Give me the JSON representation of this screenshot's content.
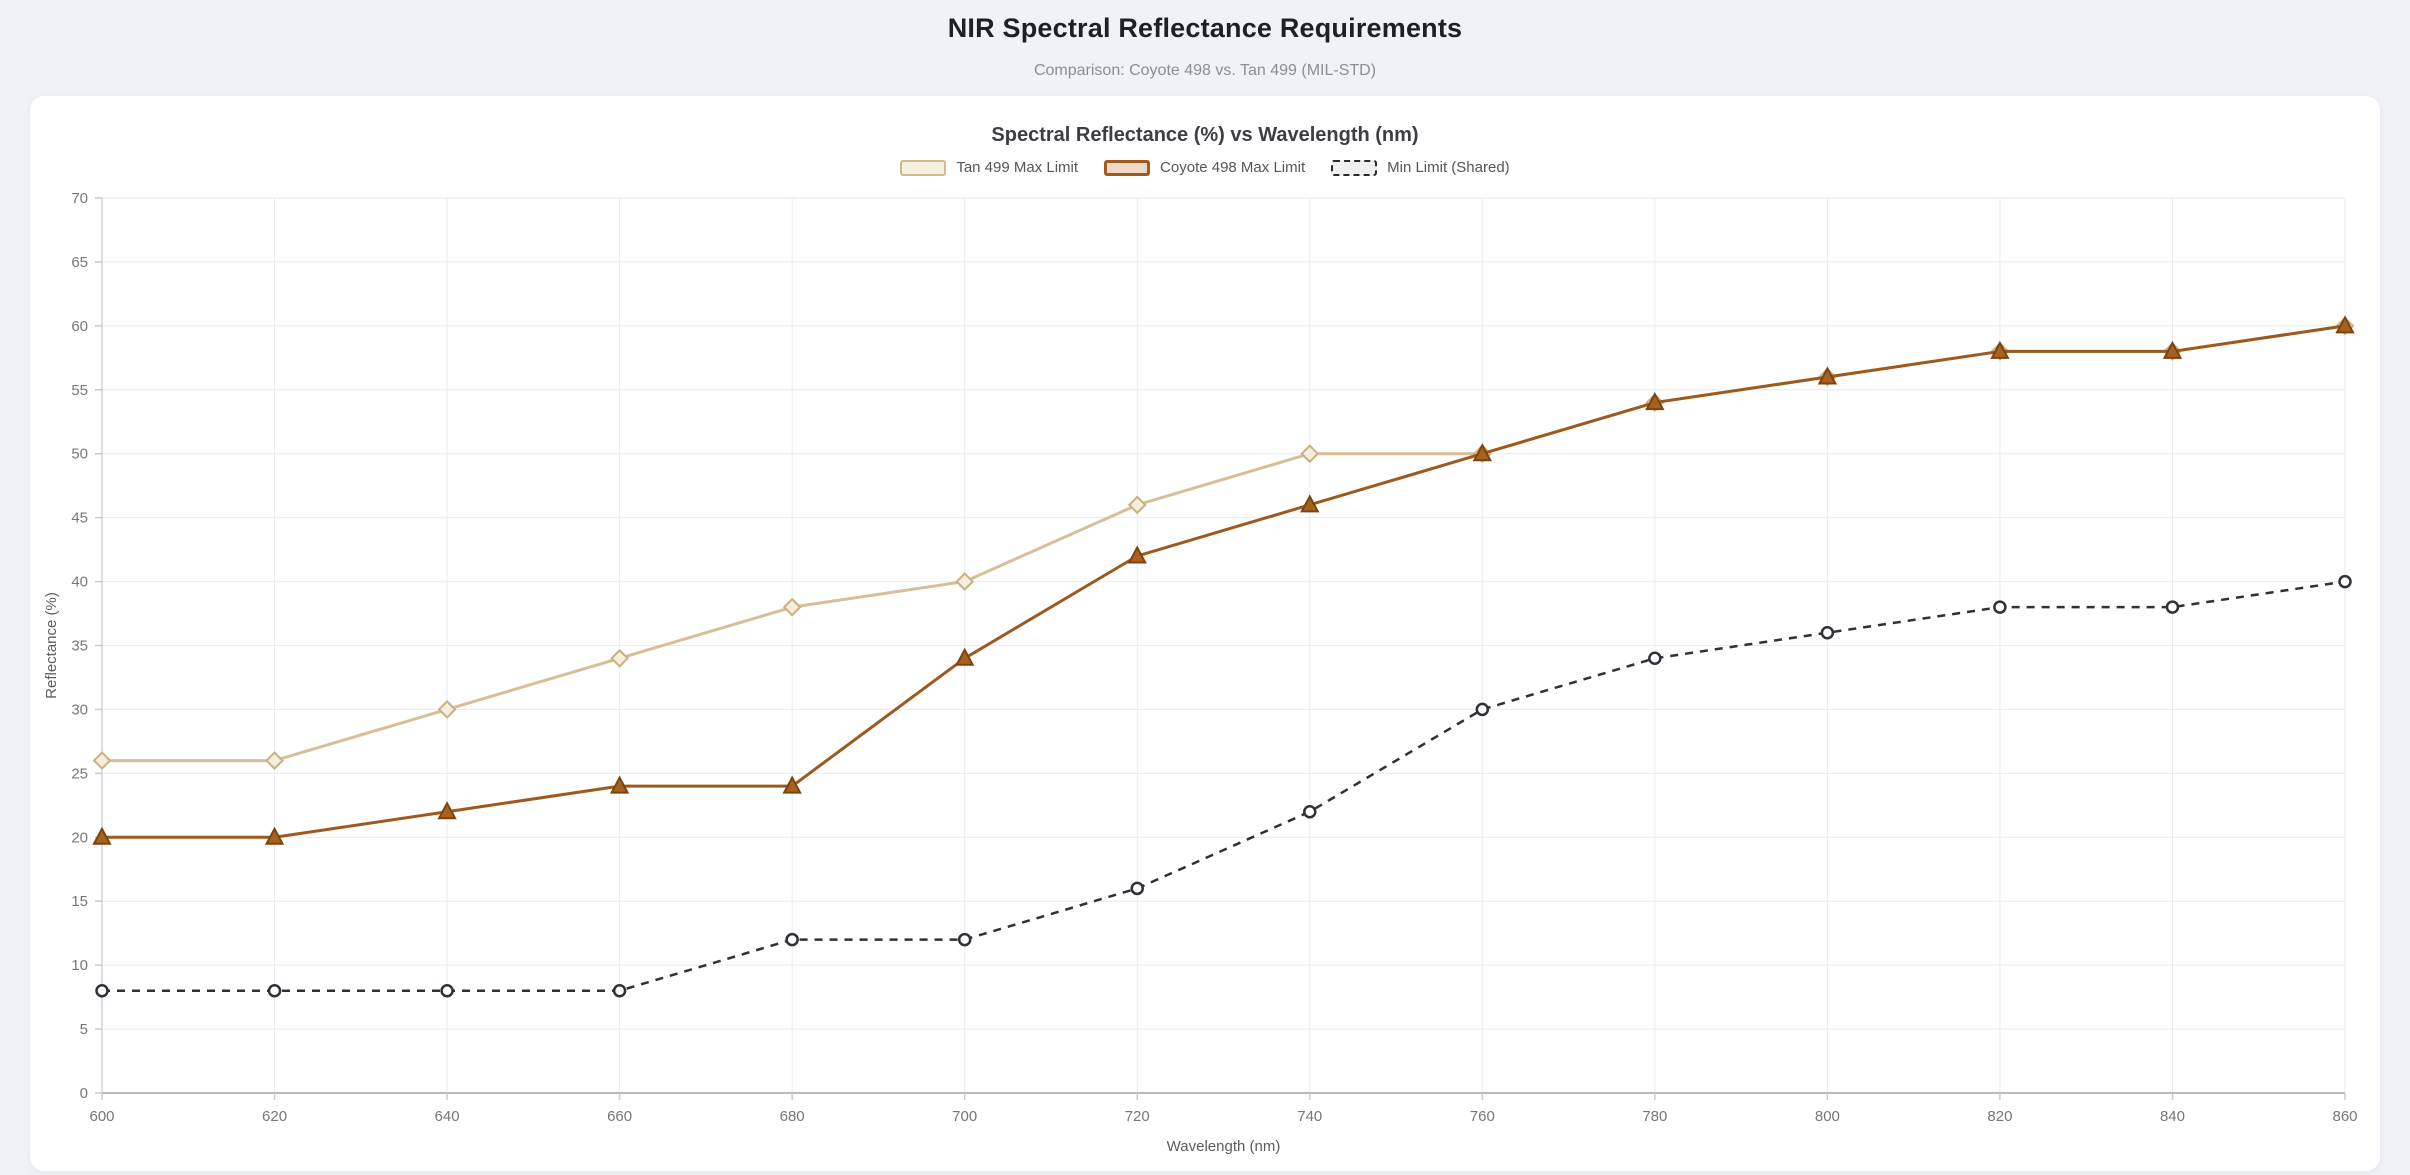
{
  "page": {
    "title": "NIR Spectral Reflectance Requirements",
    "subtitle": "Comparison: Coyote 498 vs. Tan 499 (MIL-STD)"
  },
  "chart_data": {
    "type": "line",
    "title": "Spectral Reflectance (%) vs Wavelength (nm)",
    "xlabel": "Wavelength (nm)",
    "ylabel": "Reflectance (%)",
    "x": [
      600,
      620,
      640,
      660,
      680,
      700,
      720,
      740,
      760,
      780,
      800,
      820,
      840,
      860
    ],
    "xlim": [
      600,
      860
    ],
    "ylim": [
      0,
      70
    ],
    "y_ticks": [
      0,
      5,
      10,
      15,
      20,
      25,
      30,
      35,
      40,
      45,
      50,
      55,
      60,
      65,
      70
    ],
    "grid": true,
    "legend_position": "top",
    "series": [
      {
        "name": "Tan 499 Max Limit",
        "values": [
          26,
          26,
          30,
          34,
          38,
          40,
          46,
          50,
          50,
          54,
          56,
          58,
          58,
          60
        ],
        "line_color": "#d8be96",
        "dashed": false,
        "marker": "diamond",
        "marker_fill": "#f6edda",
        "marker_stroke": "#ccae80",
        "legend_swatch_fill": "#f7efe0",
        "legend_swatch_border": "#d3b98d"
      },
      {
        "name": "Coyote 498 Max Limit",
        "values": [
          20,
          20,
          22,
          24,
          24,
          34,
          42,
          46,
          50,
          54,
          56,
          58,
          58,
          60
        ],
        "line_color": "#9c5a1e",
        "dashed": false,
        "marker": "triangle",
        "marker_fill": "#a8621f",
        "marker_stroke": "#7c430f",
        "legend_swatch_fill": "#eed9c6",
        "legend_swatch_border": "#a05c1f"
      },
      {
        "name": "Min Limit (Shared)",
        "values": [
          8,
          8,
          8,
          8,
          12,
          12,
          16,
          22,
          30,
          34,
          36,
          38,
          38,
          40
        ],
        "line_color": "#2f3038",
        "dashed": true,
        "marker": "circle",
        "marker_fill": "#ffffff",
        "marker_stroke": "#2f3038",
        "legend_swatch_fill": "#efefef",
        "legend_swatch_border": "#2a2a2e"
      }
    ]
  }
}
